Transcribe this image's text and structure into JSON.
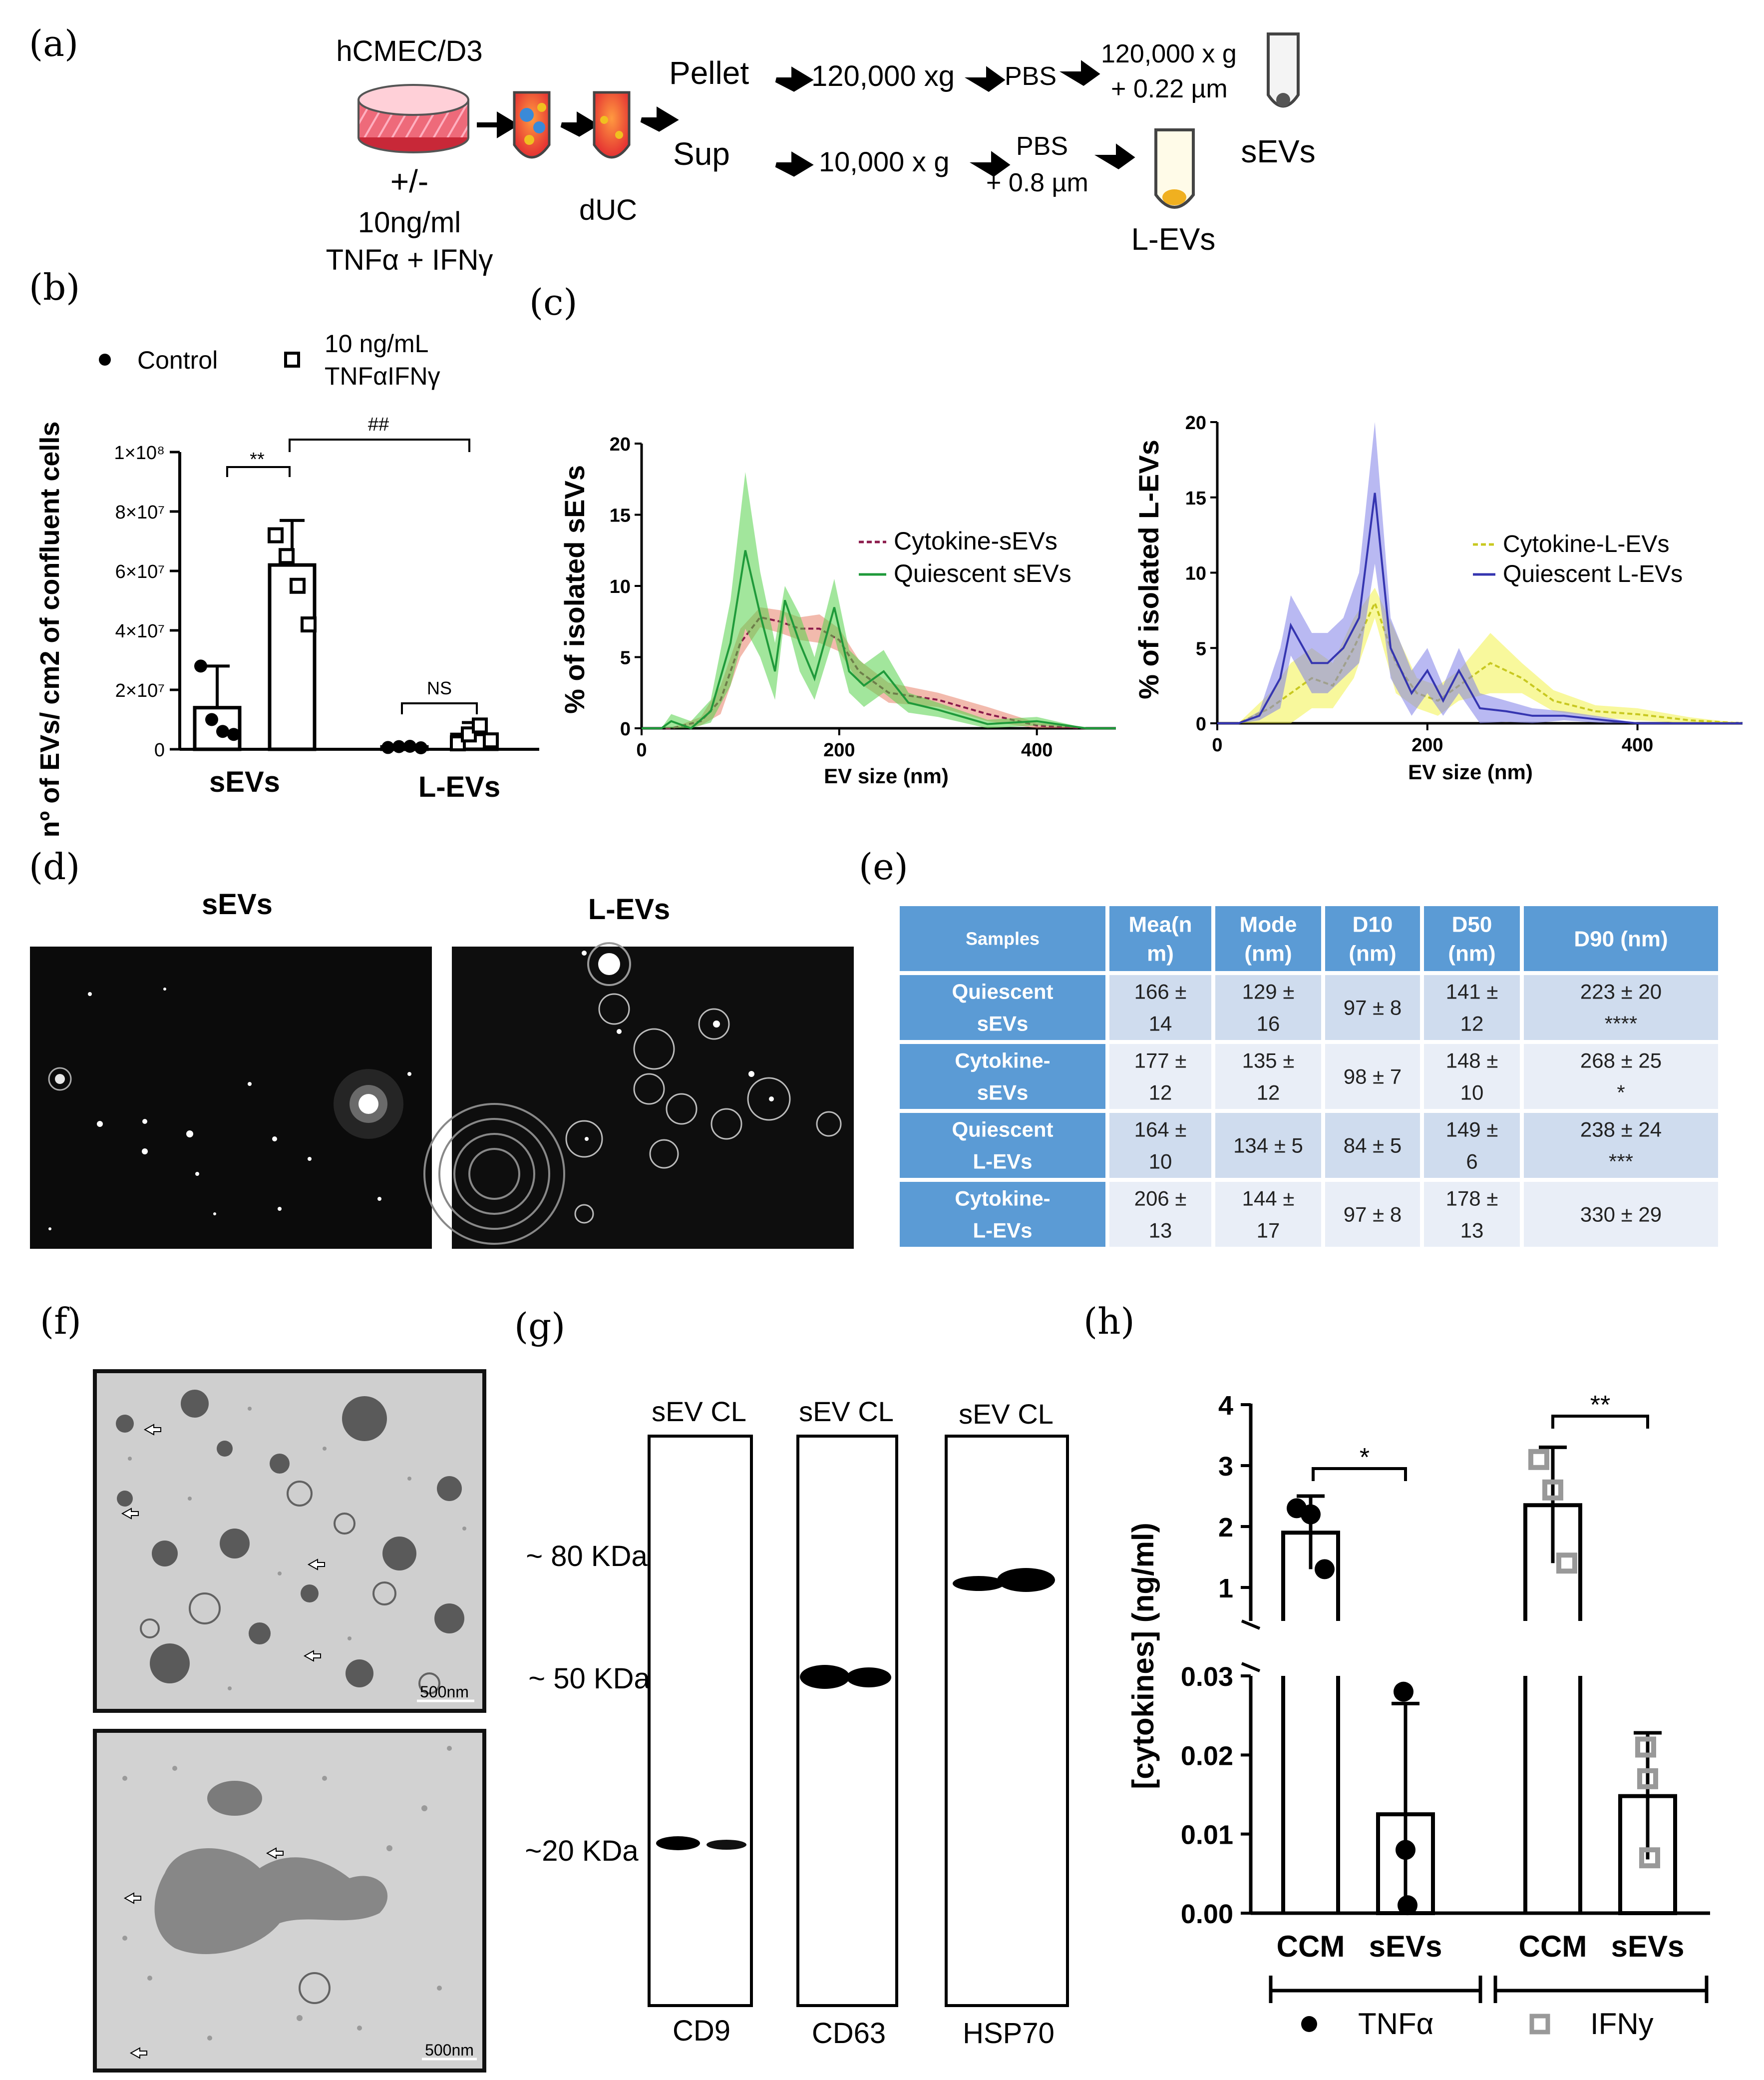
{
  "panel_labels": {
    "a": "(a)",
    "b": "(b)",
    "c": "(c)",
    "d": "(d)",
    "e": "(e)",
    "f": "(f)",
    "g": "(g)",
    "h": "(h)"
  },
  "panel_a": {
    "cell_line": "hCMEC/D3",
    "plusminus": "+/-",
    "dose": "10ng/ml",
    "treatment": "TNFα + IFNγ",
    "duc": "dUC",
    "pellet": "Pellet",
    "sup": "Sup",
    "step_pellet_1": "120,000 xg",
    "step_pbs": "PBS",
    "step_pellet_2a": "120,000 x g",
    "step_pellet_2b": "+ 0.22 µm",
    "step_sup_1": "10,000 x g",
    "step_sup_2a": "PBS",
    "step_sup_2b": "+ 0.8 µm",
    "sevs": "sEVs",
    "levs": "L-EVs"
  },
  "chart_data": [
    {
      "id": "b",
      "type": "bar",
      "ylabel": "nº of EVs/ cm2 of confluent cells",
      "yticks": [
        "0",
        "2×10⁷",
        "4×10⁷",
        "6×10⁷",
        "8×10⁷",
        "1×10⁸"
      ],
      "ylim": [
        0,
        100000000
      ],
      "groups": [
        "sEVs",
        "L-EVs"
      ],
      "legend": [
        {
          "name": "Control",
          "marker": "filled-circle"
        },
        {
          "name": "10 ng/mL TNFαIFNγ",
          "marker": "open-square"
        }
      ],
      "legend_line1": "10 ng/mL",
      "legend_line2": "TNFαIFNγ",
      "series": [
        {
          "name": "Control",
          "values": [
            14000000,
            800000
          ],
          "sd": [
            14000000,
            500000
          ],
          "points": [
            [
              28000000,
              10000000,
              6000000,
              5000000
            ],
            [
              600000,
              900000,
              1000000,
              500000
            ]
          ]
        },
        {
          "name": "10 ng/mL TNFαIFNγ",
          "values": [
            62000000,
            5000000
          ],
          "sd": [
            15000000,
            4000000
          ],
          "points": [
            [
              72000000,
              65000000,
              55000000,
              42000000
            ],
            [
              2000000,
              5000000,
              8000000,
              3000000
            ]
          ]
        }
      ],
      "annotations": [
        "**",
        "##",
        "NS"
      ]
    },
    {
      "id": "c1",
      "type": "line",
      "xlabel": "EV size (nm)",
      "ylabel": "% of isolated sEVs",
      "xlim": [
        0,
        480
      ],
      "ylim": [
        0,
        20
      ],
      "xticks": [
        "0",
        "200",
        "400"
      ],
      "yticks": [
        "0",
        "5",
        "10",
        "15",
        "20"
      ],
      "series": [
        {
          "name": "Cytokine-sEVs",
          "color": "#8b1a4a",
          "style": "dashed",
          "band": "#e8826a",
          "x": [
            0,
            30,
            60,
            80,
            100,
            120,
            140,
            160,
            180,
            200,
            220,
            250,
            300,
            350,
            400,
            450,
            480
          ],
          "y": [
            0,
            0,
            0.5,
            2,
            6,
            7.8,
            7.5,
            7,
            7,
            6.2,
            4,
            2.5,
            2,
            1,
            0.2,
            0,
            0
          ],
          "band_hi": [
            0,
            0,
            0.8,
            3,
            7,
            8.5,
            8.3,
            7.8,
            8,
            7,
            4.8,
            3.2,
            2.5,
            1.5,
            0.4,
            0,
            0
          ]
        },
        {
          "name": "Quiescent sEVs",
          "color": "#1f9a3a",
          "style": "solid",
          "band": "#55d24a",
          "x": [
            0,
            20,
            30,
            50,
            70,
            90,
            105,
            120,
            135,
            145,
            160,
            175,
            195,
            210,
            225,
            245,
            270,
            300,
            350,
            400,
            450,
            480
          ],
          "y": [
            0,
            0,
            0.5,
            0,
            1.2,
            6,
            12.5,
            8,
            4,
            9,
            6,
            3.5,
            8.5,
            4,
            3,
            4,
            1.8,
            1.3,
            0.3,
            0.5,
            0,
            0
          ],
          "band_hi": [
            0,
            0,
            1,
            0.5,
            2,
            9,
            18,
            11,
            6,
            10,
            8,
            5,
            10.5,
            5.5,
            4.5,
            5.5,
            2.5,
            1.8,
            0.6,
            0.8,
            0,
            0
          ]
        }
      ]
    },
    {
      "id": "c2",
      "type": "line",
      "xlabel": "EV size (nm)",
      "ylabel": "% of isolated L-EVs",
      "xlim": [
        0,
        500
      ],
      "ylim": [
        0,
        20
      ],
      "xticks": [
        "0",
        "200",
        "400"
      ],
      "yticks": [
        "0",
        "5",
        "10",
        "15",
        "20"
      ],
      "series": [
        {
          "name": "Cytokine-L-EVs",
          "color": "#c8c820",
          "style": "dashed",
          "band": "#f2f24a",
          "x": [
            0,
            20,
            50,
            70,
            90,
            110,
            130,
            150,
            170,
            190,
            210,
            230,
            260,
            290,
            320,
            360,
            400,
            450,
            500
          ],
          "y": [
            0,
            0,
            1,
            2,
            3,
            2.5,
            5,
            8,
            4,
            2,
            1.5,
            2.5,
            4,
            3,
            1.5,
            0.8,
            0.6,
            0.2,
            0
          ],
          "band_hi": [
            0,
            0,
            2,
            4,
            5,
            4,
            7,
            9,
            6,
            3,
            2.5,
            3.5,
            6,
            4,
            2.2,
            1.2,
            1,
            0.4,
            0
          ]
        },
        {
          "name": "Quiescent L-EVs",
          "color": "#3535b0",
          "style": "solid",
          "band": "#8080e8",
          "x": [
            0,
            20,
            40,
            60,
            70,
            90,
            105,
            120,
            135,
            150,
            165,
            185,
            200,
            215,
            230,
            250,
            275,
            300,
            330,
            370,
            400,
            450,
            500
          ],
          "y": [
            0,
            0,
            0.5,
            3,
            6.5,
            4,
            4,
            5,
            7,
            15.3,
            5,
            2,
            3.5,
            1.5,
            3.5,
            1,
            0.8,
            0.5,
            0.5,
            0.2,
            0,
            0,
            0
          ],
          "band_hi": [
            0,
            0,
            0.8,
            5,
            8.5,
            6,
            6,
            7,
            10,
            20,
            7,
            3.5,
            5,
            2.5,
            5,
            2,
            1.5,
            1,
            0.8,
            0.4,
            0,
            0,
            0
          ]
        }
      ]
    },
    {
      "id": "h",
      "type": "bar",
      "ylabel": "[cytokines] (ng/ml)",
      "upper_yticks": [
        "1",
        "2",
        "3",
        "4"
      ],
      "lower_yticks": [
        "0.00",
        "0.01",
        "0.02",
        "0.03"
      ],
      "groups": [
        "TNFα",
        "IFNy"
      ],
      "categories": [
        "CCM",
        "sEVs",
        "CCM",
        "sEVs"
      ],
      "series": [
        {
          "name": "TNFα",
          "ccm": 1.9,
          "ccm_sd": 0.6,
          "ccm_points": [
            2.3,
            2.2,
            1.3
          ],
          "sevs": 0.0125,
          "sevs_sd": 0.014,
          "sevs_points": [
            0.028,
            0.008,
            0.001
          ]
        },
        {
          "name": "IFNy",
          "ccm": 2.35,
          "ccm_sd": 0.95,
          "ccm_points": [
            3.1,
            2.6,
            1.4
          ],
          "sevs": 0.0148,
          "sevs_sd": 0.008,
          "sevs_points": [
            0.021,
            0.017,
            0.007
          ]
        }
      ],
      "annotations": [
        "*",
        "**"
      ]
    }
  ],
  "panel_d": {
    "left_title": "sEVs",
    "right_title": "L-EVs"
  },
  "table_e": {
    "headers": [
      [
        "Samples"
      ],
      [
        "Mea(n",
        "m)"
      ],
      [
        "Mode",
        "(nm)"
      ],
      [
        "D10",
        "(nm)"
      ],
      [
        "D50",
        "(nm)"
      ],
      [
        "D90 (nm)"
      ]
    ],
    "rows": [
      {
        "sample": [
          "Quiescent",
          "sEVs"
        ],
        "mean": [
          "166 ±",
          "14"
        ],
        "mode": [
          "129 ±",
          "16"
        ],
        "d10": [
          "97 ± 8"
        ],
        "d50": [
          "141 ±",
          "12"
        ],
        "d90": [
          "223 ± 20",
          "****"
        ]
      },
      {
        "sample": [
          "Cytokine-",
          "sEVs"
        ],
        "mean": [
          "177 ±",
          "12"
        ],
        "mode": [
          "135 ±",
          "12"
        ],
        "d10": [
          "98 ± 7"
        ],
        "d50": [
          "148 ±",
          "10"
        ],
        "d90": [
          "268 ± 25",
          "*"
        ]
      },
      {
        "sample": [
          "Quiescent",
          "L-EVs"
        ],
        "mean": [
          "164 ±",
          "10"
        ],
        "mode": [
          "134 ± 5"
        ],
        "d10": [
          "84 ± 5"
        ],
        "d50": [
          "149 ±",
          "6"
        ],
        "d90": [
          "238 ± 24",
          "***"
        ]
      },
      {
        "sample": [
          "Cytokine-",
          "L-EVs"
        ],
        "mean": [
          "206 ±",
          "13"
        ],
        "mode": [
          "144 ±",
          "17"
        ],
        "d10": [
          "97 ± 8"
        ],
        "d50": [
          "178 ±",
          "13"
        ],
        "d90": [
          "330 ± 29"
        ]
      }
    ]
  },
  "panel_f": {
    "scale_bar": "500nm"
  },
  "panel_g": {
    "blots": [
      {
        "header": "sEV CL",
        "label": "CD9"
      },
      {
        "header": "sEV CL",
        "label": "CD63"
      },
      {
        "header": "sEV CL",
        "label": "HSP70"
      }
    ],
    "markers": [
      "~ 80 KDa",
      "~ 50 KDa",
      "~20 KDa"
    ]
  },
  "legend_h": {
    "tnf": "TNFα",
    "ifn": "IFNy"
  }
}
